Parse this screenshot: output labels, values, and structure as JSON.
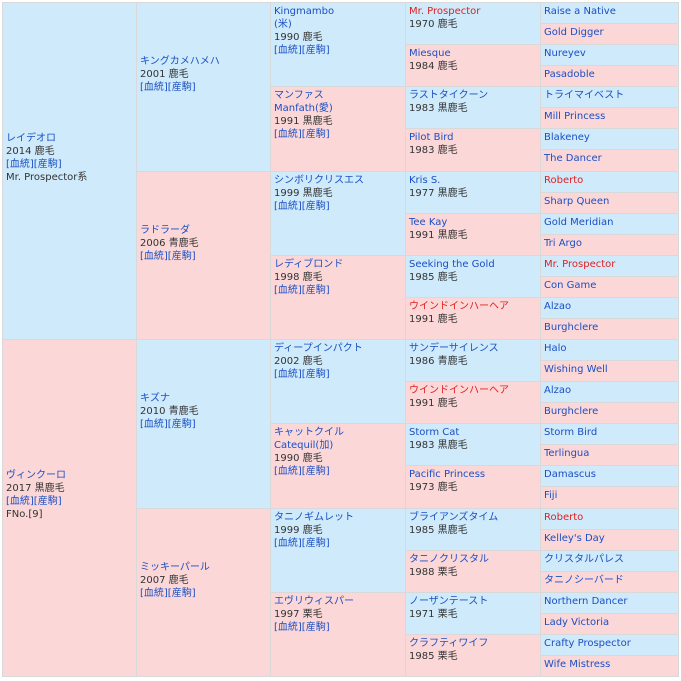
{
  "pedigree": {
    "sire": {
      "name": "レイデオロ",
      "year_color": "2014 鹿毛",
      "link": "[血統][産駒]",
      "line": "Mr. Prospector系"
    },
    "dam": {
      "name": "ヴィンクーロ",
      "year_color": "2017 黒鹿毛",
      "link": "[血統][産駒]",
      "family": "FNo.[9]"
    },
    "gen2": [
      {
        "name": "キングカメハメハ",
        "year_color": "2001 鹿毛",
        "link": "[血統][産駒]"
      },
      {
        "name": "ラドラーダ",
        "year_color": "2006 青鹿毛",
        "link": "[血統][産駒]"
      },
      {
        "name": "キズナ",
        "year_color": "2010 青鹿毛",
        "link": "[血統][産駒]"
      },
      {
        "name": "ミッキーパール",
        "year_color": "2007 鹿毛",
        "link": "[血統][産駒]"
      }
    ],
    "gen3": [
      {
        "name": "Kingmambo",
        "origin": "(米)",
        "year_color": "1990 鹿毛",
        "link": "[血統][産駒]"
      },
      {
        "name": "マンファス",
        "origin": "Manfath(愛)",
        "year_color": "1991 黒鹿毛",
        "link": "[血統][産駒]"
      },
      {
        "name": "シンボリクリスエス",
        "year_color": "1999 黒鹿毛",
        "link": "[血統][産駒]"
      },
      {
        "name": "レディブロンド",
        "year_color": "1998 鹿毛",
        "link": "[血統][産駒]"
      },
      {
        "name": "ディープインパクト",
        "year_color": "2002 鹿毛",
        "link": "[血統][産駒]"
      },
      {
        "name": "キャットクイル",
        "origin": "Catequil(加)",
        "year_color": "1990 鹿毛",
        "link": "[血統][産駒]"
      },
      {
        "name": "タニノギムレット",
        "year_color": "1999 鹿毛",
        "link": "[血統][産駒]"
      },
      {
        "name": "エヴリウィスパー",
        "year_color": "1997 栗毛",
        "link": "[血統][産駒]"
      }
    ],
    "gen4": [
      {
        "name": "Mr. Prospector",
        "year_color": "1970 鹿毛"
      },
      {
        "name": "Miesque",
        "year_color": "1984 鹿毛"
      },
      {
        "name": "ラストタイクーン",
        "year_color": "1983 黒鹿毛"
      },
      {
        "name": "Pilot Bird",
        "year_color": "1983 鹿毛"
      },
      {
        "name": "Kris S.",
        "year_color": "1977 黒鹿毛"
      },
      {
        "name": "Tee Kay",
        "year_color": "1991 黒鹿毛"
      },
      {
        "name": "Seeking the Gold",
        "year_color": "1985 鹿毛"
      },
      {
        "name": "ウインドインハーヘア",
        "year_color": "1991 鹿毛"
      },
      {
        "name": "サンデーサイレンス",
        "year_color": "1986 青鹿毛"
      },
      {
        "name": "ウインドインハーヘア",
        "year_color": "1991 鹿毛"
      },
      {
        "name": "Storm Cat",
        "year_color": "1983 黒鹿毛"
      },
      {
        "name": "Pacific Princess",
        "year_color": "1973 鹿毛"
      },
      {
        "name": "ブライアンズタイム",
        "year_color": "1985 黒鹿毛"
      },
      {
        "name": "タニノクリスタル",
        "year_color": "1988 栗毛"
      },
      {
        "name": "ノーザンテースト",
        "year_color": "1971 栗毛"
      },
      {
        "name": "クラフティワイフ",
        "year_color": "1985 栗毛"
      }
    ],
    "gen5": [
      {
        "name": "Raise a Native"
      },
      {
        "name": "Gold Digger"
      },
      {
        "name": "Nureyev"
      },
      {
        "name": "Pasadoble"
      },
      {
        "name": "トライマイベスト"
      },
      {
        "name": "Mill Princess"
      },
      {
        "name": "Blakeney"
      },
      {
        "name": "The Dancer"
      },
      {
        "name": "Roberto"
      },
      {
        "name": "Sharp Queen"
      },
      {
        "name": "Gold Meridian"
      },
      {
        "name": "Tri Argo"
      },
      {
        "name": "Mr. Prospector"
      },
      {
        "name": "Con Game"
      },
      {
        "name": "Alzao"
      },
      {
        "name": "Burghclere"
      },
      {
        "name": "Halo"
      },
      {
        "name": "Wishing Well"
      },
      {
        "name": "Alzao"
      },
      {
        "name": "Burghclere"
      },
      {
        "name": "Storm Bird"
      },
      {
        "name": "Terlingua"
      },
      {
        "name": "Damascus"
      },
      {
        "name": "Fiji"
      },
      {
        "name": "Roberto"
      },
      {
        "name": "Kelley's Day"
      },
      {
        "name": "クリスタルパレス"
      },
      {
        "name": "タニノシーバード"
      },
      {
        "name": "Northern Dancer"
      },
      {
        "name": "Lady Victoria"
      },
      {
        "name": "Crafty Prospector"
      },
      {
        "name": "Wife Mistress"
      }
    ],
    "colors": {
      "male_bg": "#cfeafb",
      "female_bg": "#fcd7d8",
      "name_link": "#1a4fc4",
      "inbreed": "#e02020"
    }
  }
}
